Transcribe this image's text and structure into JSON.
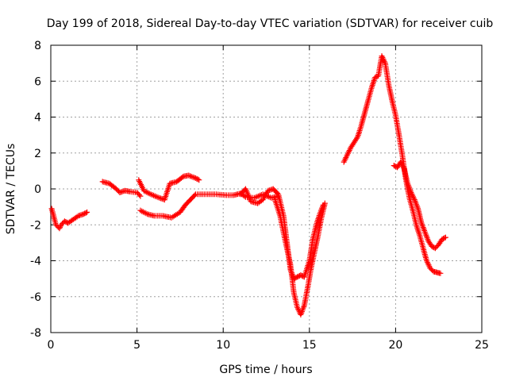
{
  "chart_data": {
    "type": "scatter",
    "title": "Day 199 of 2018, Sidereal Day-to-day VTEC variation (SDTVAR) for receiver cuib",
    "xlabel": "GPS time / hours",
    "ylabel": "SDTVAR / TECUs",
    "xlim": [
      0,
      25
    ],
    "ylim": [
      -8,
      8
    ],
    "xticks": [
      0,
      5,
      10,
      15,
      20,
      25
    ],
    "yticks": [
      -8,
      -6,
      -4,
      -2,
      0,
      2,
      4,
      6,
      8
    ],
    "grid": true,
    "marker": "+",
    "color": "#ff0000",
    "segments": [
      {
        "name": "arc-a",
        "x": [
          0.05,
          0.3,
          0.5,
          0.6,
          0.8,
          1.0,
          1.3,
          1.6,
          1.9,
          2.1
        ],
        "y": [
          -1.1,
          -2.0,
          -2.2,
          -2.0,
          -1.8,
          -1.9,
          -1.7,
          -1.5,
          -1.4,
          -1.3
        ]
      },
      {
        "name": "arc-b",
        "x": [
          3.0,
          3.4,
          3.8,
          4.0,
          4.3,
          4.6,
          5.0,
          5.2
        ],
        "y": [
          0.4,
          0.3,
          0.0,
          -0.2,
          -0.1,
          -0.15,
          -0.2,
          -0.4
        ]
      },
      {
        "name": "arc-c",
        "x": [
          5.1,
          5.4,
          5.8,
          6.3,
          6.6,
          6.9,
          7.3,
          7.7,
          8.0,
          8.4,
          8.6
        ],
        "y": [
          0.5,
          -0.1,
          -0.3,
          -0.5,
          -0.6,
          0.3,
          0.4,
          0.7,
          0.75,
          0.6,
          0.5
        ]
      },
      {
        "name": "arc-d",
        "x": [
          5.2,
          5.6,
          6.0,
          6.5,
          7.0,
          7.5,
          7.8,
          8.1,
          8.4,
          9.0,
          9.6,
          10.2,
          10.6,
          11.0,
          11.3,
          11.8,
          12.3,
          12.8,
          13.2
        ],
        "y": [
          -1.2,
          -1.4,
          -1.5,
          -1.5,
          -1.6,
          -1.3,
          -0.9,
          -0.6,
          -0.3,
          -0.3,
          -0.3,
          -0.35,
          -0.35,
          -0.25,
          -0.45,
          -0.5,
          -0.3,
          -0.5,
          -0.4
        ]
      },
      {
        "name": "arc-e",
        "x": [
          11.0,
          11.3,
          11.6,
          12.0,
          12.3,
          12.6,
          12.9,
          13.2,
          13.5,
          13.7,
          13.9,
          14.1,
          14.3,
          14.5,
          14.7,
          15.0,
          15.2,
          15.4,
          15.6,
          15.8
        ],
        "y": [
          -0.3,
          0.0,
          -0.7,
          -0.8,
          -0.6,
          -0.1,
          0.0,
          -0.3,
          -1.5,
          -3.0,
          -4.5,
          -5.0,
          -4.9,
          -4.8,
          -4.9,
          -4.0,
          -2.8,
          -2.0,
          -1.4,
          -0.9
        ]
      },
      {
        "name": "arc-f",
        "x": [
          13.0,
          13.3,
          13.6,
          13.9,
          14.1,
          14.3,
          14.5,
          14.7,
          14.9,
          15.1,
          15.3,
          15.5,
          15.7,
          15.9
        ],
        "y": [
          -0.6,
          -1.5,
          -2.9,
          -4.2,
          -5.8,
          -6.6,
          -7.0,
          -6.5,
          -5.5,
          -4.4,
          -3.5,
          -2.6,
          -1.6,
          -0.8
        ]
      },
      {
        "name": "arc-g",
        "x": [
          17.0,
          17.2,
          17.4,
          17.6,
          17.8,
          18.0,
          18.2,
          18.4,
          18.6,
          18.8,
          19.0,
          19.2,
          19.4,
          19.6,
          19.8,
          20.0,
          20.2,
          20.4,
          20.6,
          20.8,
          21.0,
          21.2,
          21.4,
          21.6,
          21.8,
          22.0,
          22.2,
          22.4,
          22.6
        ],
        "y": [
          1.5,
          1.9,
          2.3,
          2.6,
          2.9,
          3.5,
          4.2,
          4.9,
          5.6,
          6.2,
          6.3,
          7.4,
          7.0,
          5.8,
          4.9,
          4.1,
          3.0,
          1.8,
          0.5,
          -0.5,
          -1.2,
          -2.0,
          -2.6,
          -3.3,
          -4.0,
          -4.4,
          -4.6,
          -4.65,
          -4.7
        ]
      },
      {
        "name": "arc-h",
        "x": [
          19.9,
          20.1,
          20.3,
          20.5,
          20.7,
          20.9,
          21.1,
          21.3,
          21.5,
          21.7,
          21.9,
          22.1,
          22.3,
          22.5,
          22.7,
          22.9
        ],
        "y": [
          1.3,
          1.2,
          1.5,
          1.1,
          0.3,
          -0.2,
          -0.6,
          -1.1,
          -1.9,
          -2.4,
          -2.9,
          -3.2,
          -3.3,
          -3.1,
          -2.8,
          -2.7
        ]
      }
    ]
  }
}
